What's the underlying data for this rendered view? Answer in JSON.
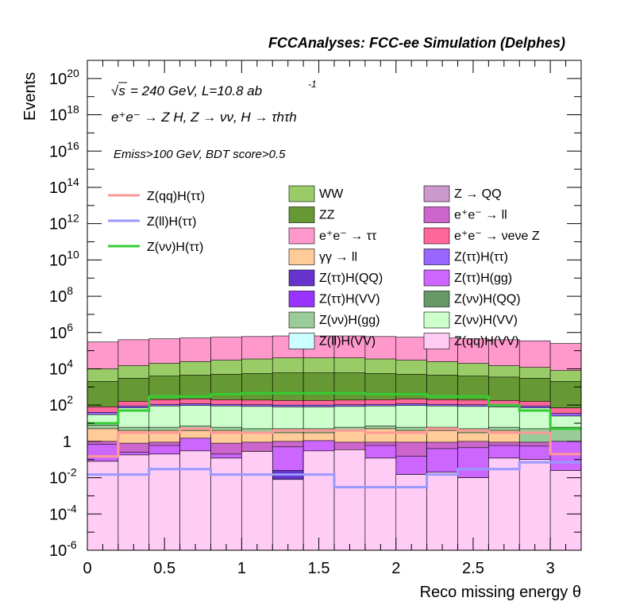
{
  "header": "FCCAnalyses: FCC-ee Simulation (Delphes)",
  "annotations": {
    "sqrt_s": "= 240 GeV, L=10.8 ab",
    "lumi_exp": "-1",
    "process": "e⁺e⁻ → Z H, Z → νν, H → τhτh",
    "cuts": "Emiss>100 GeV, BDT score>0.5"
  },
  "chart_data": {
    "type": "histogram-stacked-log",
    "xlabel": "Reco missing energy θ",
    "ylabel": "Events",
    "xlim": [
      0,
      3.2
    ],
    "ylim": [
      1e-06,
      1e+21
    ],
    "log_y": true,
    "bin_edges": [
      0,
      0.2,
      0.4,
      0.6,
      0.8,
      1.0,
      1.2,
      1.4,
      1.6,
      1.8,
      2.0,
      2.2,
      2.4,
      2.6,
      2.8,
      3.0,
      3.2
    ],
    "x_ticks": [
      {
        "v": 0,
        "label": "0"
      },
      {
        "v": 0.5,
        "label": "0.5"
      },
      {
        "v": 1,
        "label": "1"
      },
      {
        "v": 1.5,
        "label": "1.5"
      },
      {
        "v": 2,
        "label": "2"
      },
      {
        "v": 2.5,
        "label": "2.5"
      },
      {
        "v": 3,
        "label": "3"
      }
    ],
    "y_ticks": [
      {
        "exp": -6,
        "label": "10",
        "sup": "-6"
      },
      {
        "exp": -4,
        "label": "10",
        "sup": "-4"
      },
      {
        "exp": -2,
        "label": "10",
        "sup": "-2"
      },
      {
        "exp": 0,
        "label": "1",
        "sup": ""
      },
      {
        "exp": 2,
        "label": "10",
        "sup": "2"
      },
      {
        "exp": 4,
        "label": "10",
        "sup": "4"
      },
      {
        "exp": 6,
        "label": "10",
        "sup": "6"
      },
      {
        "exp": 8,
        "label": "10",
        "sup": "8"
      },
      {
        "exp": 10,
        "label": "10",
        "sup": "10"
      },
      {
        "exp": 12,
        "label": "10",
        "sup": "12"
      },
      {
        "exp": 14,
        "label": "10",
        "sup": "14"
      },
      {
        "exp": 16,
        "label": "10",
        "sup": "16"
      },
      {
        "exp": 18,
        "label": "10",
        "sup": "18"
      },
      {
        "exp": 20,
        "label": "10",
        "sup": "20"
      }
    ],
    "stack_layers": [
      {
        "name": "Z(qq)H(VV)",
        "color": "#ffccf5",
        "tops": [
          0.08,
          0.18,
          0.2,
          0.3,
          0.12,
          0.28,
          0.008,
          0.3,
          0.35,
          0.12,
          0.015,
          0.02,
          0.01,
          0.12,
          0.1,
          0.025
        ]
      },
      {
        "name": "Z(ll)H(VV)",
        "color": "#ccffff",
        "tops": [
          0.08,
          0.18,
          0.2,
          0.3,
          0.12,
          0.28,
          0.003,
          0.3,
          0.35,
          0.12,
          0.015,
          0.02,
          0.01,
          0.12,
          0.1,
          0.025
        ]
      },
      {
        "name": "Z(ττ)H(QQ)",
        "color": "#6633cc",
        "tops": [
          0.009,
          0.05,
          0.007,
          0.06,
          0.03,
          0.012,
          0.025,
          0.01,
          0.008,
          0.003,
          0.002,
          0.015,
          0.003,
          0.01,
          0.014,
          0.009
        ]
      },
      {
        "name": "Z(ττ)H(gg)",
        "color": "#cc66ff",
        "tops": [
          0.7,
          0.25,
          0.6,
          1.5,
          0.2,
          0.18,
          0.5,
          1.1,
          0.3,
          0.6,
          0.15,
          0.4,
          0.45,
          0.6,
          0.55,
          1.0
        ]
      },
      {
        "name": "e⁺e⁻ → ll",
        "color": "#cc66cc",
        "tops": [
          1.0,
          0.8,
          0.9,
          1.0,
          0.8,
          0.9,
          1.0,
          0.9,
          0.9,
          0.9,
          0.9,
          0.9,
          1.0,
          0.9,
          0.9,
          1.0
        ]
      },
      {
        "name": "γγ → ll",
        "color": "#ffcc99",
        "tops": [
          5,
          4,
          4,
          4,
          4,
          3,
          3,
          3,
          4,
          5,
          4,
          4,
          3,
          4,
          0.03,
          0.1
        ]
      },
      {
        "name": "Z(νν)H(gg)",
        "color": "#99cc99",
        "tops": [
          8,
          6,
          6,
          7,
          6,
          5,
          5,
          5,
          6,
          7,
          6,
          6,
          5,
          6,
          5,
          6
        ]
      },
      {
        "name": "Z(νν)H(VV)",
        "color": "#ccffcc",
        "tops": [
          30,
          70,
          90,
          95,
          90,
          85,
          80,
          80,
          85,
          90,
          95,
          90,
          85,
          80,
          70,
          25
        ]
      },
      {
        "name": "Z(ττ)H(ττ)",
        "color": "#9966ff",
        "tops": [
          40,
          90,
          110,
          120,
          110,
          105,
          100,
          100,
          105,
          110,
          120,
          110,
          105,
          100,
          90,
          35
        ]
      },
      {
        "name": "e⁺e⁻ → νeνe Z",
        "color": "#ff6699",
        "tops": [
          80,
          160,
          200,
          220,
          200,
          190,
          180,
          180,
          190,
          200,
          220,
          200,
          190,
          180,
          160,
          70
        ]
      },
      {
        "name": "ZZ",
        "color": "#669933",
        "tops": [
          2000,
          3000,
          4000,
          4500,
          5000,
          5500,
          6000,
          6000,
          6000,
          5500,
          5000,
          4500,
          4000,
          3500,
          3000,
          2000
        ]
      },
      {
        "name": "WW",
        "color": "#99cc66",
        "tops": [
          10000,
          15000,
          20000,
          25000,
          30000,
          35000,
          40000,
          40000,
          40000,
          35000,
          30000,
          25000,
          20000,
          15000,
          12000,
          8000
        ]
      },
      {
        "name": "e⁺e⁻ → ττ",
        "color": "#ff99cc",
        "tops": [
          300000,
          400000,
          450000,
          500000,
          550000,
          600000,
          650000,
          650000,
          650000,
          600000,
          550000,
          500000,
          450000,
          400000,
          350000,
          250000
        ]
      }
    ],
    "signal_lines": [
      {
        "name": "Z(qq)H(ττ)",
        "color": "#ff9999",
        "values": [
          0.15,
          3.0,
          3.0,
          5.0,
          3.0,
          3.0,
          4.0,
          4.0,
          4.0,
          3.0,
          3.0,
          5.0,
          4.0,
          3.0,
          3.0,
          0.2
        ]
      },
      {
        "name": "Z(ll)H(ττ)",
        "color": "#9999ff",
        "values": [
          0.015,
          0.015,
          0.03,
          0.03,
          0.015,
          0.015,
          0.015,
          0.015,
          0.003,
          0.003,
          0.003,
          0.015,
          0.03,
          0.03,
          0.07,
          0.07
        ]
      },
      {
        "name": "Z(νν)H(ττ)",
        "color": "#33cc33",
        "values": [
          10,
          50,
          300,
          300,
          400,
          450,
          450,
          450,
          450,
          400,
          400,
          300,
          300,
          100,
          50,
          5
        ]
      }
    ],
    "legend_lines": [
      {
        "name": "Z(qq)H(ττ)",
        "color": "#ff9999"
      },
      {
        "name": "Z(ll)H(ττ)",
        "color": "#9999ff"
      },
      {
        "name": "Z(νν)H(ττ)",
        "color": "#33cc33"
      }
    ],
    "legend_boxes": [
      {
        "name": "WW",
        "color": "#99cc66"
      },
      {
        "name": "Z → QQ",
        "color": "#cc99cc"
      },
      {
        "name": "ZZ",
        "color": "#669933"
      },
      {
        "name": "e⁺e⁻ → ll",
        "color": "#cc66cc"
      },
      {
        "name": "e⁺e⁻ → ττ",
        "color": "#ff99cc"
      },
      {
        "name": "e⁺e⁻ → νeνe Z",
        "color": "#ff6699"
      },
      {
        "name": "γγ → ll",
        "color": "#ffcc99"
      },
      {
        "name": "Z(ττ)H(ττ)",
        "color": "#9966ff"
      },
      {
        "name": "Z(ττ)H(QQ)",
        "color": "#6633cc"
      },
      {
        "name": "Z(ττ)H(gg)",
        "color": "#cc66ff"
      },
      {
        "name": "Z(ττ)H(VV)",
        "color": "#9933ff"
      },
      {
        "name": "Z(νν)H(QQ)",
        "color": "#669966"
      },
      {
        "name": "Z(νν)H(gg)",
        "color": "#99cc99"
      },
      {
        "name": "Z(νν)H(VV)",
        "color": "#ccffcc"
      },
      {
        "name": "Z(ll)H(VV)",
        "color": "#ccffff"
      },
      {
        "name": "Z(qq)H(VV)",
        "color": "#ffccf5"
      }
    ]
  }
}
